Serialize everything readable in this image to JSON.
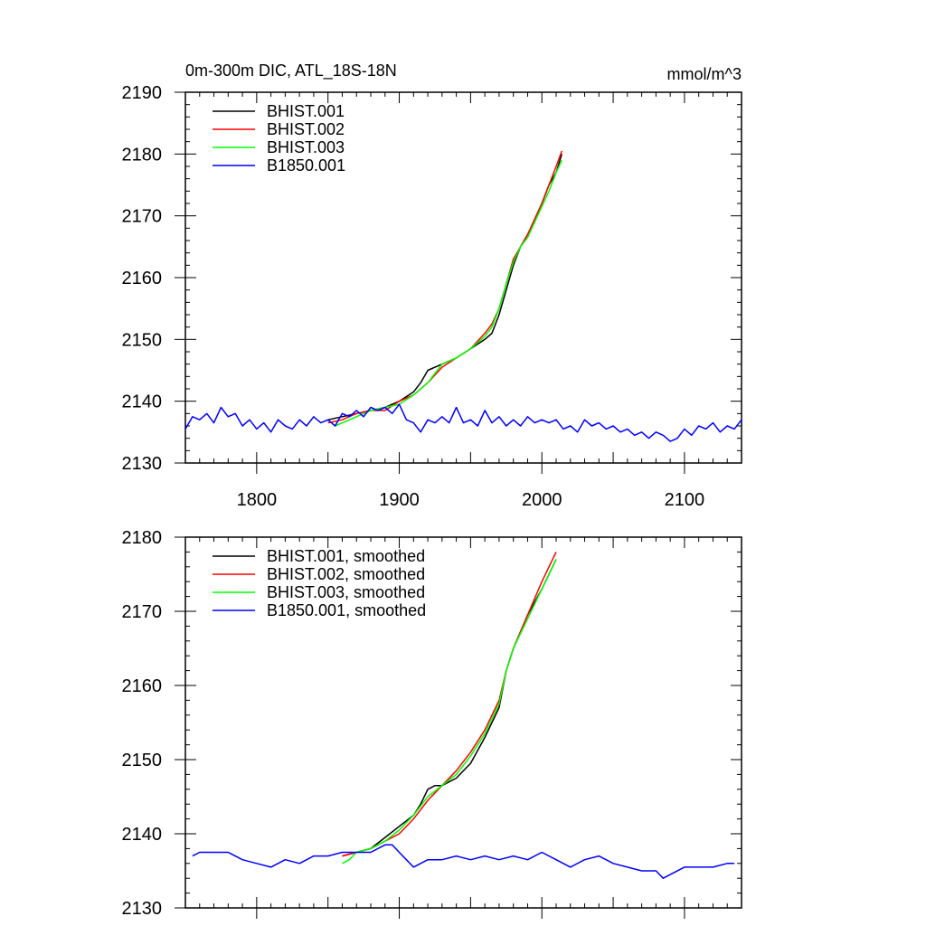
{
  "chart_data": [
    {
      "type": "line",
      "title": "0m-300m DIC, ATL_18S-18N",
      "units": "mmol/m^3",
      "xlim": [
        1750,
        2140
      ],
      "ylim": [
        2130,
        2190
      ],
      "xticks": [
        1800,
        1900,
        2000,
        2100
      ],
      "yticks": [
        2130,
        2140,
        2150,
        2160,
        2170,
        2180,
        2190
      ],
      "legend_position": "top-left",
      "series": [
        {
          "name": "BHIST.001",
          "color": "#000000",
          "x": [
            1850,
            1860,
            1870,
            1880,
            1890,
            1900,
            1910,
            1915,
            1920,
            1930,
            1940,
            1950,
            1960,
            1965,
            1970,
            1975,
            1980,
            1985,
            1990,
            1995,
            2000,
            2005,
            2010,
            2014
          ],
          "y": [
            2137,
            2137.5,
            2138,
            2138.5,
            2139,
            2140,
            2141.5,
            2143,
            2145,
            2146,
            2147,
            2148.5,
            2150,
            2151,
            2154,
            2158,
            2162,
            2165,
            2167,
            2169,
            2172,
            2175,
            2177,
            2180
          ]
        },
        {
          "name": "BHIST.002",
          "color": "#ff0000",
          "x": [
            1850,
            1860,
            1870,
            1880,
            1890,
            1900,
            1910,
            1920,
            1930,
            1940,
            1950,
            1960,
            1965,
            1970,
            1975,
            1980,
            1985,
            1990,
            1995,
            2000,
            2005,
            2010,
            2014
          ],
          "y": [
            2136.5,
            2137,
            2138,
            2138.5,
            2138.5,
            2140,
            2141,
            2143,
            2145.5,
            2147,
            2148.5,
            2151,
            2152.5,
            2155,
            2159,
            2163,
            2165,
            2167,
            2169.5,
            2172,
            2175,
            2178,
            2180.5
          ]
        },
        {
          "name": "BHIST.003",
          "color": "#00ff00",
          "x": [
            1855,
            1860,
            1870,
            1880,
            1890,
            1900,
            1910,
            1920,
            1930,
            1940,
            1950,
            1960,
            1965,
            1970,
            1975,
            1980,
            1985,
            1990,
            1995,
            2000,
            2005,
            2010,
            2014
          ],
          "y": [
            2136,
            2136.5,
            2137.5,
            2138.5,
            2139,
            2139.5,
            2141,
            2143,
            2146,
            2147,
            2148.5,
            2150.5,
            2152,
            2155,
            2159,
            2162.5,
            2165,
            2166.5,
            2169,
            2171.5,
            2174,
            2177,
            2179
          ]
        },
        {
          "name": "B1850.001",
          "color": "#0000ff",
          "x": [
            1750,
            1755,
            1760,
            1765,
            1770,
            1775,
            1780,
            1785,
            1790,
            1795,
            1800,
            1805,
            1810,
            1815,
            1820,
            1825,
            1830,
            1835,
            1840,
            1845,
            1850,
            1855,
            1860,
            1865,
            1870,
            1875,
            1880,
            1885,
            1890,
            1895,
            1900,
            1905,
            1910,
            1915,
            1920,
            1925,
            1930,
            1935,
            1940,
            1945,
            1950,
            1955,
            1960,
            1965,
            1970,
            1975,
            1980,
            1985,
            1990,
            1995,
            2000,
            2005,
            2010,
            2015,
            2020,
            2025,
            2030,
            2035,
            2040,
            2045,
            2050,
            2055,
            2060,
            2065,
            2070,
            2075,
            2080,
            2085,
            2090,
            2095,
            2100,
            2105,
            2110,
            2115,
            2120,
            2125,
            2130,
            2135,
            2140
          ],
          "y": [
            2135.5,
            2137.5,
            2137,
            2138,
            2136.5,
            2139,
            2137.5,
            2138,
            2136,
            2137,
            2135.5,
            2136.5,
            2135,
            2137,
            2136,
            2135.5,
            2137,
            2136,
            2137.5,
            2136.5,
            2137,
            2136,
            2138,
            2137.5,
            2138.5,
            2137.5,
            2139,
            2138.5,
            2139,
            2138,
            2139.5,
            2137,
            2136.5,
            2135,
            2137,
            2136.5,
            2137.5,
            2136.5,
            2139,
            2136.5,
            2137,
            2136,
            2138.5,
            2136.5,
            2137.5,
            2136,
            2137,
            2136,
            2137.5,
            2136.5,
            2137,
            2136.5,
            2137,
            2135.5,
            2136,
            2135,
            2137,
            2136,
            2136.5,
            2135.5,
            2136,
            2135,
            2135.5,
            2134.5,
            2135,
            2134,
            2135,
            2134.5,
            2133.5,
            2134,
            2135.5,
            2134.5,
            2136,
            2135.5,
            2136.5,
            2135,
            2136,
            2135.5,
            2137
          ]
        }
      ]
    },
    {
      "type": "line",
      "xlim": [
        1750,
        2140
      ],
      "ylim": [
        2130,
        2180
      ],
      "xticks": [
        1800,
        1900,
        2000,
        2100
      ],
      "yticks": [
        2130,
        2140,
        2150,
        2160,
        2170,
        2180
      ],
      "legend_position": "top-left",
      "series": [
        {
          "name": "BHIST.001, smoothed",
          "color": "#000000",
          "x": [
            1860,
            1870,
            1880,
            1890,
            1900,
            1910,
            1915,
            1920,
            1925,
            1930,
            1940,
            1950,
            1960,
            1970,
            1975,
            1980,
            1990,
            2000,
            2010
          ],
          "y": [
            2137,
            2137.5,
            2138,
            2139.5,
            2141,
            2142.5,
            2144,
            2146,
            2146.5,
            2146.5,
            2147.5,
            2149.5,
            2153,
            2157,
            2162,
            2165,
            2169.5,
            2173,
            2177
          ]
        },
        {
          "name": "BHIST.002, smoothed",
          "color": "#ff0000",
          "x": [
            1860,
            1870,
            1880,
            1890,
            1900,
            1910,
            1920,
            1930,
            1940,
            1950,
            1960,
            1970,
            1975,
            1980,
            1990,
            2000,
            2010
          ],
          "y": [
            2137,
            2137.5,
            2138,
            2139,
            2140,
            2142,
            2144.5,
            2146.5,
            2148.5,
            2151,
            2154,
            2158,
            2162,
            2165,
            2169.5,
            2174,
            2178
          ]
        },
        {
          "name": "BHIST.003, smoothed",
          "color": "#00ff00",
          "x": [
            1860,
            1865,
            1870,
            1880,
            1890,
            1900,
            1910,
            1920,
            1930,
            1940,
            1950,
            1960,
            1970,
            1975,
            1980,
            1990,
            2000,
            2010
          ],
          "y": [
            2136,
            2136.5,
            2137.5,
            2138,
            2139,
            2140.5,
            2142.5,
            2145,
            2146.5,
            2148,
            2150.5,
            2153.5,
            2157.5,
            2162,
            2165,
            2169,
            2173,
            2177
          ]
        },
        {
          "name": "B1850.001, smoothed",
          "color": "#0000ff",
          "x": [
            1755,
            1760,
            1770,
            1780,
            1790,
            1800,
            1810,
            1820,
            1830,
            1840,
            1850,
            1860,
            1870,
            1880,
            1890,
            1895,
            1900,
            1905,
            1910,
            1920,
            1930,
            1940,
            1950,
            1960,
            1970,
            1980,
            1990,
            2000,
            2010,
            2020,
            2030,
            2040,
            2050,
            2060,
            2070,
            2080,
            2085,
            2090,
            2100,
            2110,
            2120,
            2130,
            2135
          ],
          "y": [
            2137,
            2137.5,
            2137.5,
            2137.5,
            2136.5,
            2136,
            2135.5,
            2136.5,
            2136,
            2137,
            2137,
            2137.5,
            2137.5,
            2137.5,
            2138.5,
            2138.5,
            2137.5,
            2136.5,
            2135.5,
            2136.5,
            2136.5,
            2137,
            2136.5,
            2137,
            2136.5,
            2137,
            2136.5,
            2137.5,
            2136.5,
            2135.5,
            2136.5,
            2137,
            2136,
            2135.5,
            2135,
            2135,
            2134,
            2134.5,
            2135.5,
            2135.5,
            2135.5,
            2136,
            2136
          ]
        }
      ]
    }
  ]
}
